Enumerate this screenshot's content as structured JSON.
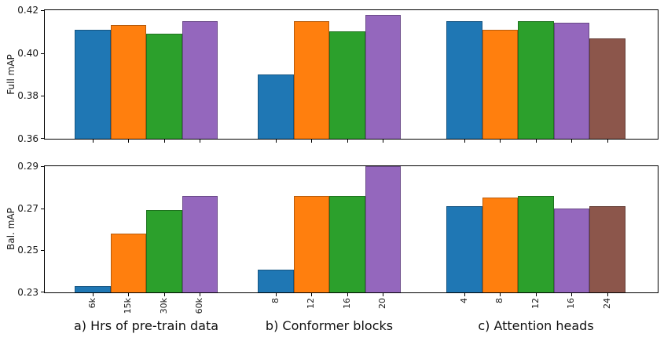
{
  "chart_data": {
    "type": "bar",
    "title": "",
    "legend": "none",
    "grid": false,
    "bar_colors": [
      "#1f77b4",
      "#ff7f0e",
      "#2ca02c",
      "#9467bd",
      "#8c564b"
    ],
    "groups": [
      {
        "title": "a) Hrs of pre-train data",
        "categories": [
          "6k",
          "15k",
          "30k",
          "60k"
        ]
      },
      {
        "title": "b) Conformer blocks",
        "categories": [
          "8",
          "12",
          "16",
          "20"
        ]
      },
      {
        "title": "c) Attention heads",
        "categories": [
          "4",
          "8",
          "12",
          "16",
          "24"
        ]
      }
    ],
    "rows": [
      {
        "ylabel": "Full mAP",
        "ylim": [
          0.36,
          0.42
        ],
        "yticks": [
          {
            "label": "0.42",
            "value": 0.42
          },
          {
            "label": "0.40",
            "value": 0.4
          },
          {
            "label": "0.38",
            "value": 0.38
          },
          {
            "label": "0.36",
            "value": 0.36
          }
        ],
        "values": [
          [
            0.411,
            0.413,
            0.409,
            0.415
          ],
          [
            0.39,
            0.415,
            0.41,
            0.418
          ],
          [
            0.415,
            0.411,
            0.415,
            0.414,
            0.407
          ]
        ]
      },
      {
        "ylabel": "Bal. mAP",
        "ylim": [
          0.23,
          0.29
        ],
        "yticks": [
          {
            "label": "0.29",
            "value": 0.29
          },
          {
            "label": "0.27",
            "value": 0.27
          },
          {
            "label": "0.25",
            "value": 0.25
          },
          {
            "label": "0.23",
            "value": 0.23
          }
        ],
        "values": [
          [
            0.233,
            0.258,
            0.269,
            0.276
          ],
          [
            0.241,
            0.276,
            0.276,
            0.29
          ],
          [
            0.271,
            0.275,
            0.276,
            0.27,
            0.271
          ]
        ]
      }
    ]
  }
}
